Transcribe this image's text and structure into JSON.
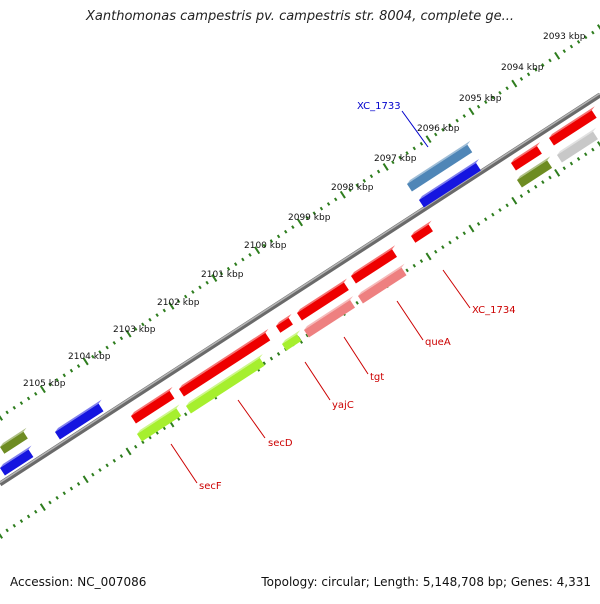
{
  "title": "Xanthomonas campestris pv. campestris str. 8004, complete ge...",
  "footer": {
    "accession": "Accession: NC_007086",
    "summary": "Topology: circular; Length: 5,148,708 bp; Genes: 4,331"
  },
  "scale_labels": [
    "2093 kbp",
    "2094 kbp",
    "2095 kbp",
    "2096 kbp",
    "2097 kbp",
    "2098 kbp",
    "2099 kbp",
    "2100 kbp",
    "2101 kbp",
    "2102 kbp",
    "2103 kbp",
    "2104 kbp",
    "2105 kbp"
  ],
  "gene_labels": [
    {
      "name": "XC_1733",
      "color": "#0000cc"
    },
    {
      "name": "XC_1734",
      "color": "#cc0000"
    },
    {
      "name": "queA",
      "color": "#cc0000"
    },
    {
      "name": "tgt",
      "color": "#cc0000"
    },
    {
      "name": "yajC",
      "color": "#cc0000"
    },
    {
      "name": "secD",
      "color": "#cc0000"
    },
    {
      "name": "secF",
      "color": "#cc0000"
    }
  ],
  "colors": {
    "backbone": "#8c8c8c",
    "tick_green": "#2e7d1e",
    "forward_cds": "#ee0000",
    "forward_gene_light": "#ee8080",
    "lime_gene": "#a6ef2e",
    "olive_gene": "#6e8c22",
    "blue_gene": "#1515e0",
    "steelblue_gene": "#4f86b7",
    "grey_gene": "#c8c8c8"
  }
}
